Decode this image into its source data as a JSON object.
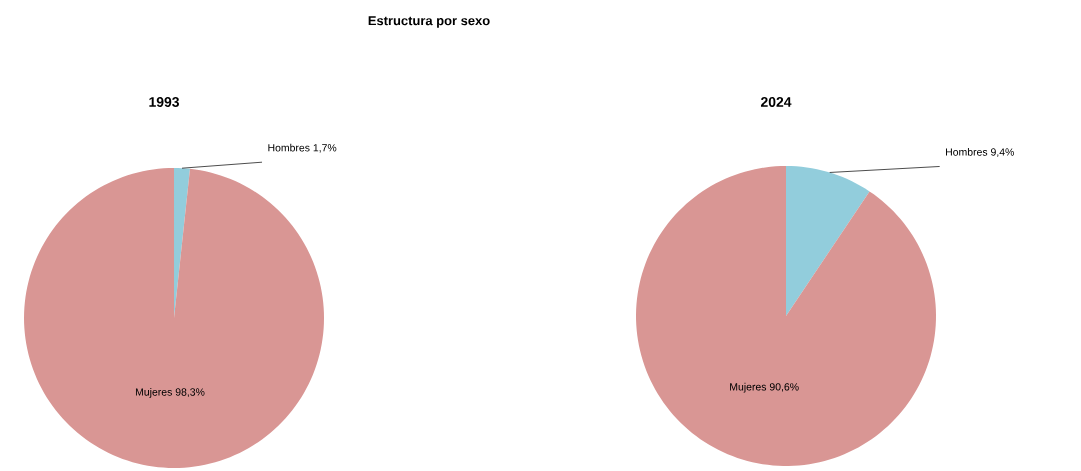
{
  "chart_data": [
    {
      "type": "pie",
      "title": "1993",
      "annotations": [
        "Estructura por sexo"
      ],
      "categories": [
        "Hombres",
        "Mujeres"
      ],
      "values": [
        1.7,
        98.3
      ],
      "colors": [
        "#92cddc",
        "#d99694"
      ],
      "value_labels": [
        "1,7%",
        "98,3%"
      ]
    },
    {
      "type": "pie",
      "title": "2024",
      "categories": [
        "Hombres",
        "Mujeres"
      ],
      "values": [
        9.4,
        90.6
      ],
      "colors": [
        "#92cddc",
        "#d99694"
      ],
      "value_labels": [
        "9,4%",
        "90,6%"
      ]
    }
  ]
}
